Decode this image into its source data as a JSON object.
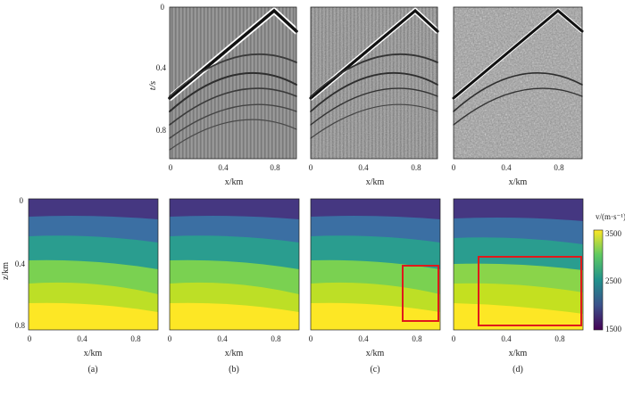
{
  "figure": {
    "gathers": {
      "y_label": "t/s",
      "x_label": "x/km",
      "y_ticks": [
        "0",
        "0.4",
        "0.8"
      ],
      "x_ticks": [
        "0",
        "0.4",
        "0.8"
      ],
      "panels": [
        {
          "noise_level": "none"
        },
        {
          "noise_level": "moderate"
        },
        {
          "noise_level": "strong"
        }
      ]
    },
    "models": {
      "y_label": "z/km",
      "x_label": "x/km",
      "y_ticks": [
        "0",
        "0.4",
        "0.8"
      ],
      "x_ticks": [
        "0",
        "0.4",
        "0.8"
      ],
      "panels": [
        {
          "caption": "(a)"
        },
        {
          "caption": "(b)"
        },
        {
          "caption": "(c)",
          "highlight": "red box"
        },
        {
          "caption": "(d)",
          "highlight": "red box"
        }
      ]
    },
    "colorbar": {
      "label": "v/(m·s⁻¹)",
      "ticks": [
        "3500",
        "2500",
        "1500"
      ],
      "colors": [
        "#440154",
        "#3b528b",
        "#21918c",
        "#5ec962",
        "#fde725"
      ]
    }
  }
}
